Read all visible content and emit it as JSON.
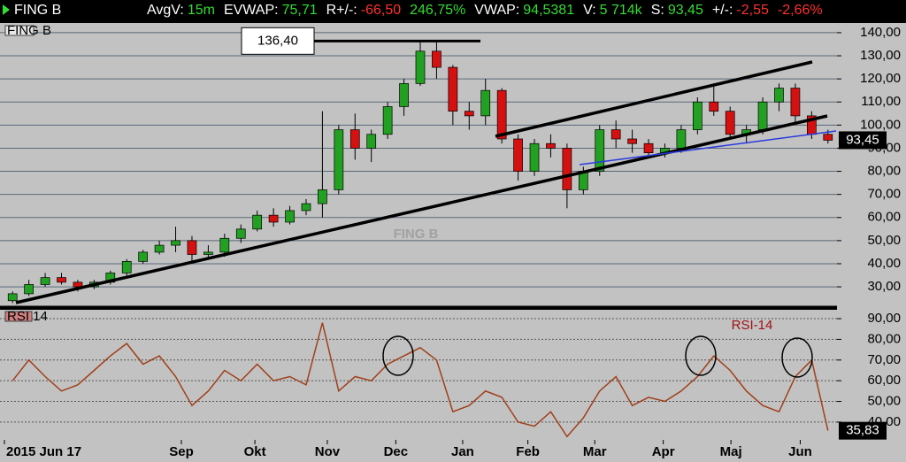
{
  "header": {
    "title": "FING B",
    "items": [
      {
        "label": "AvgV:",
        "value": "15m"
      },
      {
        "label": "EVWAP:",
        "value": "75,71"
      },
      {
        "label": "R+/-:",
        "value": "-66,50"
      },
      {
        "label": "",
        "value": "246,75%"
      },
      {
        "label": "VWAP:",
        "value": "94,5381"
      },
      {
        "label": "V:",
        "value": "5 714k"
      },
      {
        "label": "S:",
        "value": "93,45"
      },
      {
        "label": "+/-:",
        "value": "-2,55"
      },
      {
        "label": "",
        "value": "-2,66%"
      }
    ]
  },
  "chart_data": [
    {
      "type": "candlestick",
      "title": "FING B",
      "watermark": "FING B",
      "open": [
        24,
        27,
        31,
        34,
        32,
        30,
        32,
        36,
        41,
        45,
        48,
        50,
        44,
        45,
        51,
        55,
        61,
        58,
        63,
        66,
        72,
        98,
        90,
        96,
        108,
        118,
        132,
        125,
        106,
        104,
        115,
        94,
        80,
        92,
        90,
        72,
        80,
        98,
        94,
        92,
        88,
        90,
        98,
        110,
        106,
        96,
        98,
        110,
        116,
        104,
        96
      ],
      "high": [
        28,
        33,
        36,
        36,
        33,
        33,
        37,
        42,
        46,
        50,
        56,
        52,
        48,
        53,
        57,
        63,
        64,
        65,
        68,
        106,
        100,
        105,
        98,
        110,
        120,
        136,
        136,
        126,
        110,
        120,
        116,
        96,
        94,
        96,
        92,
        82,
        100,
        102,
        98,
        94,
        92,
        100,
        112,
        118,
        108,
        100,
        112,
        118,
        118,
        106,
        98
      ],
      "low": [
        23,
        26,
        30,
        31,
        28,
        29,
        31,
        35,
        40,
        44,
        45,
        41,
        42,
        43,
        49,
        54,
        56,
        57,
        61,
        60,
        70,
        85,
        84,
        94,
        104,
        117,
        120,
        100,
        98,
        100,
        92,
        76,
        78,
        86,
        64,
        70,
        78,
        90,
        88,
        86,
        86,
        88,
        96,
        104,
        94,
        92,
        96,
        106,
        100,
        94,
        92
      ],
      "close": [
        27,
        31,
        34,
        32,
        30,
        32,
        36,
        41,
        45,
        48,
        50,
        44,
        45,
        51,
        55,
        61,
        58,
        63,
        66,
        72,
        98,
        90,
        96,
        108,
        118,
        132,
        125,
        106,
        104,
        115,
        94,
        80,
        92,
        90,
        72,
        80,
        98,
        94,
        92,
        88,
        90,
        98,
        110,
        106,
        96,
        98,
        110,
        116,
        104,
        96,
        93.45
      ],
      "up_color": "#22a022",
      "down_color": "#d41010",
      "xlim": [
        -0.5,
        50.5
      ],
      "ylim": [
        21.6,
        143.8
      ],
      "yticks": [
        {
          "value": 30,
          "label": "30,00"
        },
        {
          "value": 40,
          "label": "40,00"
        },
        {
          "value": 50,
          "label": "50,00"
        },
        {
          "value": 60,
          "label": "60,00"
        },
        {
          "value": 70,
          "label": "70,00"
        },
        {
          "value": 80,
          "label": "80,00"
        },
        {
          "value": 90,
          "label": "90,00"
        },
        {
          "value": 100,
          "label": "100,00"
        },
        {
          "value": 110,
          "label": "110,00"
        },
        {
          "value": 120,
          "label": "120,00"
        },
        {
          "value": 130,
          "label": "130,00"
        },
        {
          "value": 140,
          "label": "140,00"
        }
      ],
      "annotation": {
        "value": 136.4,
        "label": "136,40"
      },
      "last_value": 93.45,
      "last_value_label": "93,45",
      "grid": true
    },
    {
      "type": "line",
      "title": "RSI 14",
      "label": "RSI-14",
      "color": "#a0401a",
      "values": [
        60,
        70,
        62,
        55,
        58,
        65,
        72,
        78,
        68,
        72,
        62,
        48,
        55,
        65,
        60,
        68,
        60,
        62,
        58,
        88,
        55,
        62,
        60,
        68,
        72,
        76,
        70,
        45,
        48,
        55,
        52,
        40,
        38,
        45,
        33,
        42,
        55,
        62,
        48,
        52,
        50,
        55,
        62,
        72,
        65,
        55,
        48,
        45,
        62,
        70,
        35.83
      ],
      "xlim": [
        -0.5,
        50.5
      ],
      "ylim": [
        31.4,
        94.3
      ],
      "yticks": [
        {
          "value": 40,
          "label": "40,00"
        },
        {
          "value": 50,
          "label": "50,00"
        },
        {
          "value": 60,
          "label": "60,00"
        },
        {
          "value": 70,
          "label": "70,00"
        },
        {
          "value": 80,
          "label": "80,00"
        },
        {
          "value": 90,
          "label": "90,00"
        }
      ],
      "xticks": [
        {
          "value": -0.5,
          "label": "2015 Jun 17"
        },
        {
          "value": 10.35,
          "label": "Sep"
        },
        {
          "value": 14.86,
          "label": "Okt"
        },
        {
          "value": 19.3,
          "label": "Nov"
        },
        {
          "value": 23.5,
          "label": "Dec"
        },
        {
          "value": 27.6,
          "label": "Jan"
        },
        {
          "value": 31.6,
          "label": "Feb"
        },
        {
          "value": 35.7,
          "label": "Mar"
        },
        {
          "value": 39.9,
          "label": "Apr"
        },
        {
          "value": 44.05,
          "label": "Maj"
        },
        {
          "value": 48.3,
          "label": "Jun"
        }
      ],
      "last_value": 35.83,
      "last_value_label": "35,83",
      "grid": true
    }
  ]
}
